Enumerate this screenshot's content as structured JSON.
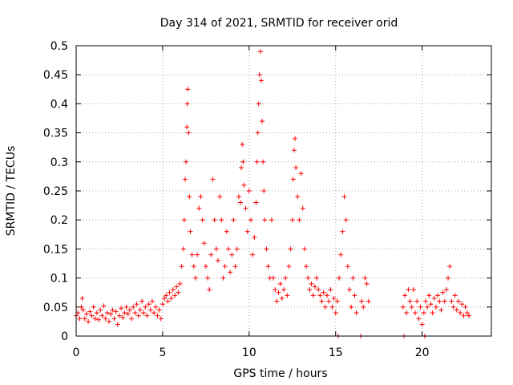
{
  "chart_data": {
    "type": "scatter",
    "title": "Day 314 of 2021, SRMTID for receiver orid",
    "xlabel": "GPS time / hours",
    "ylabel": "SRMTID / TECUs",
    "xlim": [
      0,
      24
    ],
    "ylim": [
      0,
      0.5
    ],
    "xticks": [
      0,
      5,
      10,
      15,
      20
    ],
    "yticks": [
      0,
      0.05,
      0.1,
      0.15,
      0.2,
      0.25,
      0.3,
      0.35,
      0.4,
      0.45,
      0.5
    ],
    "xtick_labels": [
      "0",
      "5",
      "10",
      "15",
      "20"
    ],
    "ytick_labels": [
      "0",
      "0.05",
      "0.1",
      "0.15",
      "0.2",
      "0.25",
      "0.3",
      "0.35",
      "0.4",
      "0.45",
      "0.5"
    ],
    "grid": true,
    "marker": "+",
    "color": "#ff0000",
    "series": [
      {
        "name": "SRMTID",
        "points": [
          [
            0.0,
            0.035
          ],
          [
            0.1,
            0.04
          ],
          [
            0.2,
            0.03
          ],
          [
            0.3,
            0.05
          ],
          [
            0.35,
            0.065
          ],
          [
            0.4,
            0.045
          ],
          [
            0.5,
            0.03
          ],
          [
            0.6,
            0.038
          ],
          [
            0.7,
            0.025
          ],
          [
            0.8,
            0.042
          ],
          [
            0.9,
            0.035
          ],
          [
            1.0,
            0.05
          ],
          [
            1.1,
            0.03
          ],
          [
            1.2,
            0.04
          ],
          [
            1.3,
            0.028
          ],
          [
            1.4,
            0.045
          ],
          [
            1.5,
            0.035
          ],
          [
            1.6,
            0.052
          ],
          [
            1.7,
            0.03
          ],
          [
            1.8,
            0.04
          ],
          [
            1.9,
            0.025
          ],
          [
            2.0,
            0.038
          ],
          [
            2.1,
            0.045
          ],
          [
            2.2,
            0.03
          ],
          [
            2.3,
            0.042
          ],
          [
            2.4,
            0.02
          ],
          [
            2.5,
            0.035
          ],
          [
            2.6,
            0.048
          ],
          [
            2.7,
            0.032
          ],
          [
            2.8,
            0.04
          ],
          [
            2.9,
            0.05
          ],
          [
            3.0,
            0.038
          ],
          [
            3.1,
            0.045
          ],
          [
            3.2,
            0.03
          ],
          [
            3.3,
            0.05
          ],
          [
            3.4,
            0.04
          ],
          [
            3.5,
            0.055
          ],
          [
            3.6,
            0.035
          ],
          [
            3.7,
            0.045
          ],
          [
            3.8,
            0.06
          ],
          [
            3.9,
            0.04
          ],
          [
            4.0,
            0.05
          ],
          [
            4.1,
            0.035
          ],
          [
            4.2,
            0.055
          ],
          [
            4.3,
            0.045
          ],
          [
            4.4,
            0.06
          ],
          [
            4.5,
            0.04
          ],
          [
            4.6,
            0.05
          ],
          [
            4.7,
            0.035
          ],
          [
            4.8,
            0.045
          ],
          [
            4.9,
            0.03
          ],
          [
            5.0,
            0.055
          ],
          [
            5.1,
            0.065
          ],
          [
            5.2,
            0.07
          ],
          [
            5.3,
            0.06
          ],
          [
            5.4,
            0.075
          ],
          [
            5.5,
            0.065
          ],
          [
            5.6,
            0.08
          ],
          [
            5.7,
            0.07
          ],
          [
            5.8,
            0.085
          ],
          [
            5.9,
            0.075
          ],
          [
            6.0,
            0.09
          ],
          [
            6.1,
            0.12
          ],
          [
            6.2,
            0.15
          ],
          [
            6.25,
            0.2
          ],
          [
            6.3,
            0.27
          ],
          [
            6.35,
            0.3
          ],
          [
            6.4,
            0.36
          ],
          [
            6.42,
            0.4
          ],
          [
            6.45,
            0.425
          ],
          [
            6.5,
            0.35
          ],
          [
            6.55,
            0.24
          ],
          [
            6.6,
            0.18
          ],
          [
            6.7,
            0.14
          ],
          [
            6.8,
            0.12
          ],
          [
            6.9,
            0.1
          ],
          [
            7.0,
            0.14
          ],
          [
            7.1,
            0.22
          ],
          [
            7.2,
            0.24
          ],
          [
            7.3,
            0.2
          ],
          [
            7.4,
            0.16
          ],
          [
            7.5,
            0.12
          ],
          [
            7.6,
            0.1
          ],
          [
            7.7,
            0.08
          ],
          [
            7.8,
            0.14
          ],
          [
            7.9,
            0.27
          ],
          [
            8.0,
            0.2
          ],
          [
            8.1,
            0.15
          ],
          [
            8.2,
            0.13
          ],
          [
            8.3,
            0.24
          ],
          [
            8.4,
            0.2
          ],
          [
            8.5,
            0.1
          ],
          [
            8.6,
            0.12
          ],
          [
            8.7,
            0.18
          ],
          [
            8.8,
            0.15
          ],
          [
            8.9,
            0.11
          ],
          [
            9.0,
            0.14
          ],
          [
            9.1,
            0.2
          ],
          [
            9.2,
            0.12
          ],
          [
            9.3,
            0.15
          ],
          [
            9.4,
            0.24
          ],
          [
            9.5,
            0.23
          ],
          [
            9.55,
            0.29
          ],
          [
            9.6,
            0.33
          ],
          [
            9.65,
            0.3
          ],
          [
            9.7,
            0.26
          ],
          [
            9.8,
            0.22
          ],
          [
            9.9,
            0.18
          ],
          [
            10.0,
            0.25
          ],
          [
            10.1,
            0.2
          ],
          [
            10.2,
            0.14
          ],
          [
            10.3,
            0.17
          ],
          [
            10.4,
            0.23
          ],
          [
            10.45,
            0.3
          ],
          [
            10.5,
            0.35
          ],
          [
            10.55,
            0.4
          ],
          [
            10.6,
            0.45
          ],
          [
            10.65,
            0.49
          ],
          [
            10.7,
            0.44
          ],
          [
            10.75,
            0.37
          ],
          [
            10.8,
            0.3
          ],
          [
            10.85,
            0.25
          ],
          [
            10.9,
            0.2
          ],
          [
            11.0,
            0.15
          ],
          [
            11.1,
            0.12
          ],
          [
            11.2,
            0.1
          ],
          [
            11.3,
            0.2
          ],
          [
            11.4,
            0.1
          ],
          [
            11.5,
            0.08
          ],
          [
            11.6,
            0.06
          ],
          [
            11.7,
            0.075
          ],
          [
            11.8,
            0.09
          ],
          [
            11.9,
            0.065
          ],
          [
            12.0,
            0.08
          ],
          [
            12.1,
            0.1
          ],
          [
            12.2,
            0.07
          ],
          [
            12.3,
            0.12
          ],
          [
            12.4,
            0.15
          ],
          [
            12.5,
            0.2
          ],
          [
            12.55,
            0.27
          ],
          [
            12.6,
            0.32
          ],
          [
            12.65,
            0.34
          ],
          [
            12.7,
            0.29
          ],
          [
            12.8,
            0.24
          ],
          [
            12.9,
            0.2
          ],
          [
            13.0,
            0.28
          ],
          [
            13.1,
            0.22
          ],
          [
            13.2,
            0.15
          ],
          [
            13.3,
            0.12
          ],
          [
            13.4,
            0.1
          ],
          [
            13.5,
            0.08
          ],
          [
            13.6,
            0.09
          ],
          [
            13.7,
            0.07
          ],
          [
            13.8,
            0.085
          ],
          [
            13.9,
            0.1
          ],
          [
            14.0,
            0.08
          ],
          [
            14.1,
            0.07
          ],
          [
            14.2,
            0.06
          ],
          [
            14.3,
            0.075
          ],
          [
            14.4,
            0.05
          ],
          [
            14.5,
            0.07
          ],
          [
            14.6,
            0.06
          ],
          [
            14.7,
            0.08
          ],
          [
            14.8,
            0.05
          ],
          [
            14.9,
            0.065
          ],
          [
            15.0,
            0.04
          ],
          [
            15.1,
            0.06
          ],
          [
            15.2,
            0.1
          ],
          [
            15.3,
            0.14
          ],
          [
            15.4,
            0.18
          ],
          [
            15.5,
            0.24
          ],
          [
            15.6,
            0.2
          ],
          [
            15.7,
            0.12
          ],
          [
            15.8,
            0.08
          ],
          [
            15.9,
            0.05
          ],
          [
            16.0,
            0.1
          ],
          [
            16.1,
            0.07
          ],
          [
            16.2,
            0.04
          ],
          [
            16.5,
            0.06
          ],
          [
            16.6,
            0.05
          ],
          [
            16.7,
            0.1
          ],
          [
            16.8,
            0.09
          ],
          [
            16.9,
            0.06
          ],
          [
            18.9,
            0.05
          ],
          [
            19.0,
            0.07
          ],
          [
            19.1,
            0.04
          ],
          [
            19.2,
            0.08
          ],
          [
            19.3,
            0.06
          ],
          [
            19.4,
            0.05
          ],
          [
            19.5,
            0.08
          ],
          [
            19.6,
            0.04
          ],
          [
            19.7,
            0.06
          ],
          [
            19.8,
            0.03
          ],
          [
            19.9,
            0.05
          ],
          [
            20.0,
            0.02
          ],
          [
            20.1,
            0.04
          ],
          [
            20.2,
            0.06
          ],
          [
            20.3,
            0.05
          ],
          [
            20.4,
            0.07
          ],
          [
            20.5,
            0.055
          ],
          [
            20.6,
            0.04
          ],
          [
            20.7,
            0.065
          ],
          [
            20.8,
            0.05
          ],
          [
            20.9,
            0.07
          ],
          [
            21.0,
            0.06
          ],
          [
            21.1,
            0.045
          ],
          [
            21.2,
            0.075
          ],
          [
            21.3,
            0.06
          ],
          [
            21.4,
            0.08
          ],
          [
            21.5,
            0.1
          ],
          [
            21.6,
            0.12
          ],
          [
            21.7,
            0.06
          ],
          [
            21.8,
            0.05
          ],
          [
            21.9,
            0.07
          ],
          [
            22.0,
            0.045
          ],
          [
            22.1,
            0.06
          ],
          [
            22.2,
            0.04
          ],
          [
            22.3,
            0.055
          ],
          [
            22.4,
            0.035
          ],
          [
            22.5,
            0.05
          ],
          [
            22.6,
            0.04
          ],
          [
            22.7,
            0.035
          ],
          [
            15.15,
            0.0
          ],
          [
            16.45,
            0.0
          ],
          [
            18.95,
            0.0
          ],
          [
            20.15,
            0.0
          ]
        ]
      }
    ]
  }
}
